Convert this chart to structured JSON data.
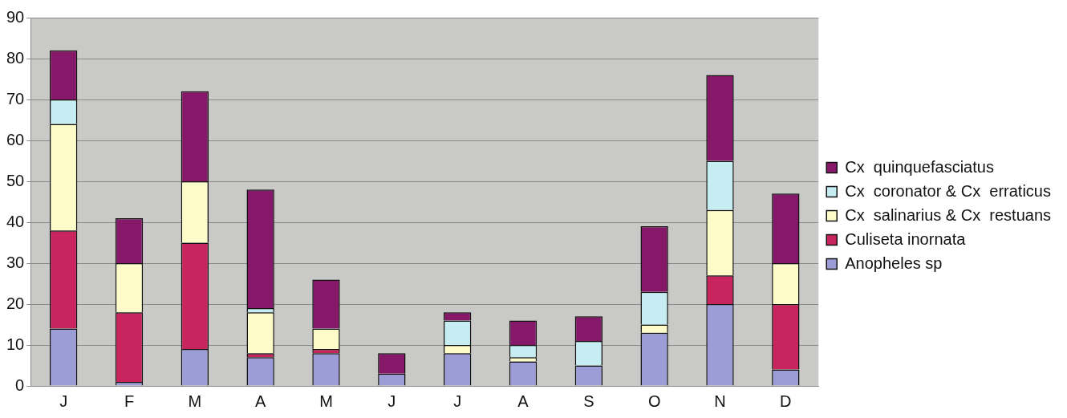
{
  "chart_data": {
    "type": "bar",
    "stacked": true,
    "categories": [
      "J",
      "F",
      "M",
      "A",
      "M",
      "J",
      "J",
      "A",
      "S",
      "O",
      "N",
      "D"
    ],
    "series": [
      {
        "name": "Anopheles sp",
        "color": "#9c9cd6",
        "values": [
          14,
          1,
          9,
          7,
          8,
          3,
          8,
          6,
          5,
          13,
          20,
          4
        ]
      },
      {
        "name": "Culiseta inornata",
        "color": "#c8245e",
        "values": [
          24,
          17,
          26,
          1,
          1,
          0,
          0,
          0,
          0,
          0,
          7,
          16
        ]
      },
      {
        "name": "Cx  salinarius & Cx  restuans",
        "color": "#fdfbc8",
        "values": [
          26,
          12,
          15,
          10,
          5,
          0,
          2,
          1,
          0,
          2,
          16,
          10
        ]
      },
      {
        "name": "Cx  coronator & Cx  erraticus",
        "color": "#c6eef2",
        "values": [
          6,
          0,
          0,
          1,
          0,
          0,
          6,
          3,
          6,
          8,
          12,
          0
        ]
      },
      {
        "name": "Cx  quinquefasciatus",
        "color": "#86186a",
        "values": [
          12,
          11,
          22,
          29,
          12,
          5,
          2,
          6,
          6,
          16,
          21,
          17
        ]
      }
    ],
    "ylim": [
      0,
      90
    ],
    "yticks": [
      0,
      10,
      20,
      30,
      40,
      50,
      60,
      70,
      80,
      90
    ],
    "grid": "y",
    "legend": "right"
  }
}
